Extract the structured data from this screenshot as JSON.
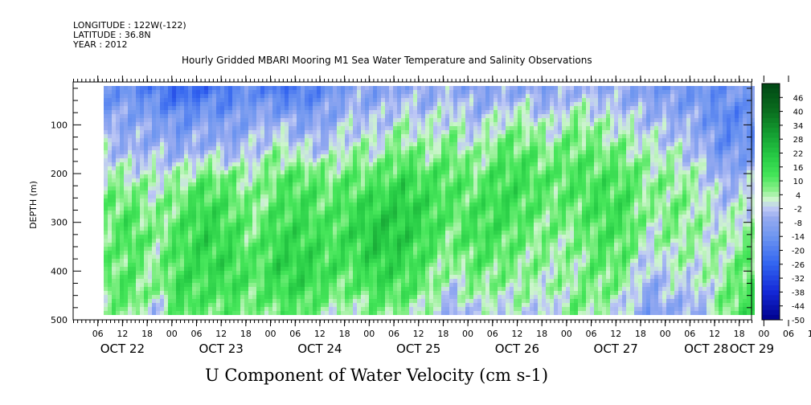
{
  "header": {
    "longitude": "LONGITUDE : 122W(-122)",
    "latitude": "LATITUDE : 36.8N",
    "year": "YEAR : 2012",
    "subtitle": "Hourly Gridded MBARI Mooring M1 Sea Water Temperature and Salinity Observations"
  },
  "chart_data": {
    "type": "heatmap",
    "title": "U Component of Water Velocity (cm s-1)",
    "ylabel": "DEPTH (m)",
    "y_axis": {
      "range": [
        500,
        12
      ],
      "inverted": true,
      "ticks": [
        100,
        200,
        300,
        400,
        500
      ]
    },
    "x_axis": {
      "range_hours": [
        0,
        165
      ],
      "hour_ticks": [
        "06",
        "12",
        "18",
        "00",
        "06",
        "12",
        "18",
        "00",
        "06",
        "12",
        "18",
        "00",
        "06",
        "12",
        "18",
        "00",
        "06",
        "12",
        "18",
        "00",
        "06",
        "12",
        "18",
        "00",
        "06",
        "12",
        "18",
        "00",
        "06",
        "12",
        "18",
        "00"
      ],
      "day_labels": [
        "OCT 22",
        "OCT 23",
        "OCT 24",
        "OCT 25",
        "OCT 26",
        "OCT 27",
        "OCT 28",
        "OCT 29"
      ]
    },
    "colorbar": {
      "labels": [
        "46",
        "40",
        "34",
        "28",
        "22",
        "16",
        "10",
        "4",
        "-2",
        "-8",
        "-14",
        "-20",
        "-26",
        "-32",
        "-38",
        "-44",
        "-50"
      ],
      "min": -50,
      "max": 52
    },
    "data_extent": {
      "time_start_hour": 7.5,
      "time_end_hour": 165,
      "depth_top_m": 20,
      "depth_bottom_m": 485
    },
    "columns": [
      {
        "hour": 8,
        "u": [
          -14,
          -8,
          -2,
          4,
          10,
          6,
          8,
          10,
          4
        ]
      },
      {
        "hour": 14,
        "u": [
          -14,
          -8,
          -6,
          4,
          10,
          14,
          10,
          12,
          8
        ]
      },
      {
        "hour": 20,
        "u": [
          -20,
          -10,
          -4,
          2,
          4,
          6,
          4,
          4,
          -4
        ]
      },
      {
        "hour": 26,
        "u": [
          -26,
          -14,
          -8,
          4,
          10,
          12,
          14,
          16,
          12
        ]
      },
      {
        "hour": 32,
        "u": [
          -22,
          -10,
          -4,
          10,
          16,
          18,
          16,
          12,
          10
        ]
      },
      {
        "hour": 38,
        "u": [
          -20,
          -12,
          -6,
          8,
          12,
          14,
          16,
          14,
          10
        ]
      },
      {
        "hour": 44,
        "u": [
          -14,
          -8,
          -2,
          4,
          6,
          8,
          10,
          10,
          6
        ]
      },
      {
        "hour": 50,
        "u": [
          -22,
          -6,
          4,
          10,
          12,
          16,
          18,
          14,
          10
        ]
      },
      {
        "hour": 56,
        "u": [
          -20,
          -10,
          -2,
          12,
          14,
          16,
          18,
          16,
          10
        ]
      },
      {
        "hour": 62,
        "u": [
          -14,
          -8,
          -2,
          8,
          10,
          12,
          14,
          10,
          4
        ]
      },
      {
        "hour": 68,
        "u": [
          -8,
          -2,
          4,
          10,
          14,
          16,
          12,
          8,
          2
        ]
      },
      {
        "hour": 74,
        "u": [
          -10,
          -4,
          2,
          10,
          18,
          22,
          18,
          14,
          8
        ]
      },
      {
        "hour": 80,
        "u": [
          -6,
          2,
          8,
          16,
          20,
          20,
          16,
          12,
          6
        ]
      },
      {
        "hour": 86,
        "u": [
          -8,
          -2,
          4,
          12,
          16,
          14,
          10,
          8,
          2
        ]
      },
      {
        "hour": 92,
        "u": [
          -4,
          2,
          8,
          12,
          10,
          8,
          4,
          -2,
          -6
        ]
      },
      {
        "hour": 98,
        "u": [
          -10,
          -4,
          2,
          8,
          12,
          14,
          10,
          6,
          0
        ]
      },
      {
        "hour": 104,
        "u": [
          -8,
          2,
          10,
          14,
          16,
          12,
          8,
          4,
          -2
        ]
      },
      {
        "hour": 110,
        "u": [
          -6,
          4,
          10,
          14,
          12,
          8,
          6,
          4,
          2
        ]
      },
      {
        "hour": 116,
        "u": [
          -10,
          -2,
          6,
          10,
          8,
          6,
          4,
          2,
          -4
        ]
      },
      {
        "hour": 122,
        "u": [
          -4,
          6,
          10,
          12,
          10,
          6,
          4,
          6,
          8
        ]
      },
      {
        "hour": 128,
        "u": [
          -6,
          2,
          8,
          12,
          14,
          12,
          10,
          8,
          4
        ]
      },
      {
        "hour": 134,
        "u": [
          -8,
          0,
          6,
          12,
          14,
          12,
          8,
          4,
          -2
        ]
      },
      {
        "hour": 140,
        "u": [
          -10,
          -4,
          2,
          6,
          4,
          2,
          -4,
          -8,
          -10
        ]
      },
      {
        "hour": 146,
        "u": [
          -12,
          -6,
          0,
          6,
          8,
          6,
          2,
          -2,
          -6
        ]
      },
      {
        "hour": 152,
        "u": [
          -14,
          -8,
          -4,
          2,
          4,
          4,
          2,
          -2,
          -8
        ]
      },
      {
        "hour": 158,
        "u": [
          -14,
          -18,
          -14,
          -6,
          -2,
          2,
          4,
          6,
          8
        ]
      },
      {
        "hour": 164,
        "u": [
          -10,
          -16,
          -12,
          -4,
          2,
          6,
          10,
          12,
          14
        ]
      }
    ],
    "column_depths_m": [
      30,
      90,
      150,
      210,
      270,
      330,
      390,
      440,
      480
    ]
  }
}
